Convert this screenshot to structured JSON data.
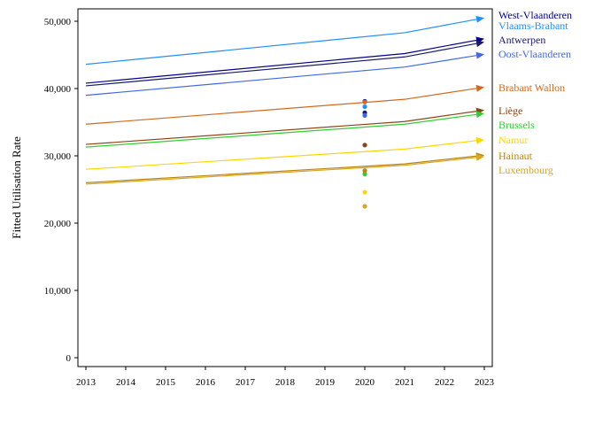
{
  "chart_data": {
    "type": "line",
    "title": "",
    "xlabel": "",
    "ylabel": "Fitted Utilisation Rate",
    "xlim": [
      2013,
      2023
    ],
    "ylim": [
      0,
      52000
    ],
    "x_ticks": [
      2013,
      2014,
      2015,
      2016,
      2017,
      2018,
      2019,
      2020,
      2021,
      2022,
      2023
    ],
    "y_ticks": [
      0,
      10000,
      20000,
      30000,
      40000,
      50000
    ],
    "y_tick_labels": [
      "0",
      "10,000",
      "20,000",
      "30,000",
      "40,000",
      "50,000"
    ],
    "grid": false,
    "legend": "direct labels at right end of lines",
    "x": [
      2013,
      2021,
      2023
    ],
    "series": [
      {
        "name": "West-Vlaanderen",
        "color": "#00008b",
        "values": [
          40800,
          45200,
          47400
        ],
        "observed_2020": 38100
      },
      {
        "name": "Vlaams-Brabant",
        "color": "#1e90ff",
        "values": [
          43600,
          48300,
          50500
        ],
        "observed_2020": 37300
      },
      {
        "name": "Antwerpen",
        "color": "#191970",
        "values": [
          40400,
          44700,
          46900
        ],
        "observed_2020": 36400
      },
      {
        "name": "Oost-Vlaanderen",
        "color": "#4169e1",
        "values": [
          39000,
          43200,
          45100
        ],
        "observed_2020": 36000
      },
      {
        "name": "Brabant Wallon",
        "color": "#d2691e",
        "values": [
          34700,
          38400,
          40200
        ],
        "observed_2020": 38000
      },
      {
        "name": "Liège",
        "color": "#8b4513",
        "values": [
          31700,
          35100,
          36800
        ],
        "observed_2020": 31600
      },
      {
        "name": "Brussels",
        "color": "#32cd32",
        "values": [
          31300,
          34700,
          36300
        ],
        "observed_2020": 27300
      },
      {
        "name": "Namur",
        "color": "#ffd700",
        "values": [
          28000,
          31000,
          32400
        ],
        "observed_2020": 24600
      },
      {
        "name": "Hainaut",
        "color": "#b8860b",
        "values": [
          26000,
          28800,
          30100
        ],
        "observed_2020": 27800
      },
      {
        "name": "Luxembourg",
        "color": "#daa520",
        "values": [
          25800,
          28600,
          29900
        ],
        "observed_2020": 22500
      }
    ]
  }
}
